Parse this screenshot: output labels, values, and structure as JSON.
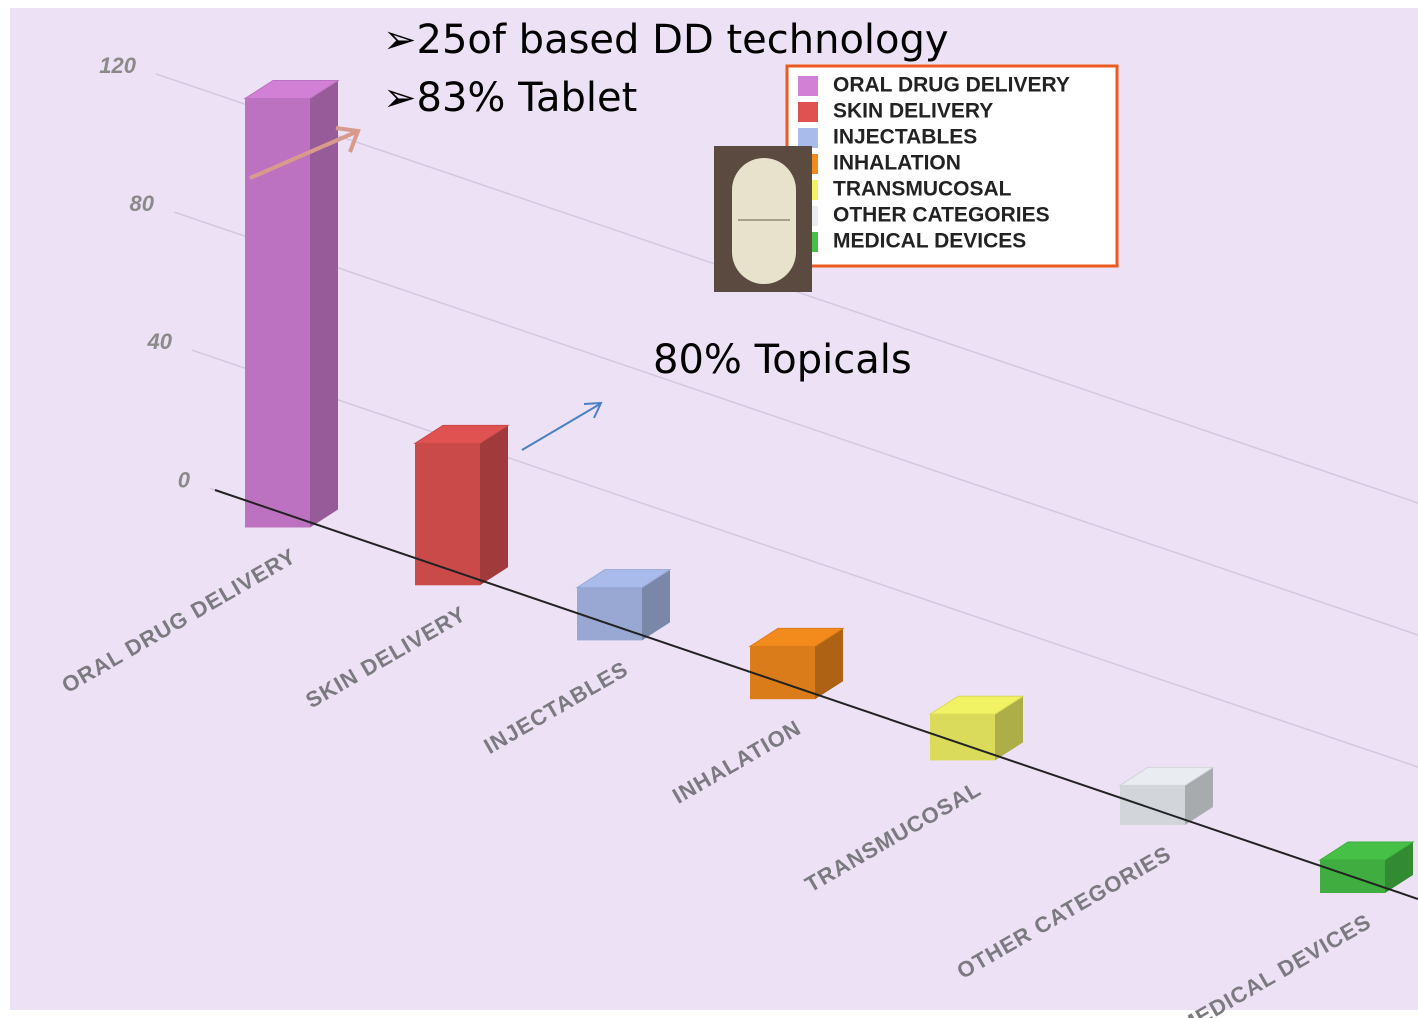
{
  "chart_data": {
    "type": "bar3d",
    "categories": [
      "ORAL DRUG DELIVERY",
      "SKIN DELIVERY",
      "INJECTABLES",
      "INHALATION",
      "TRANSMUCOSAL",
      "OTHER CATEGORIES",
      "MEDICAL DEVICES"
    ],
    "values": [
      130,
      43,
      16,
      16,
      14,
      12,
      10
    ],
    "colors": [
      "#d27fd6",
      "#e05252",
      "#a9bbea",
      "#f28a1c",
      "#f2f265",
      "#e9edf2",
      "#46c046"
    ],
    "ylim": [
      0,
      130
    ],
    "yticks": [
      0,
      40,
      80,
      120
    ],
    "grid": true,
    "legend": "top-right",
    "annotations": [
      "➢25of based DD technology",
      "➢83% Tablet",
      "80% Topicals"
    ]
  }
}
